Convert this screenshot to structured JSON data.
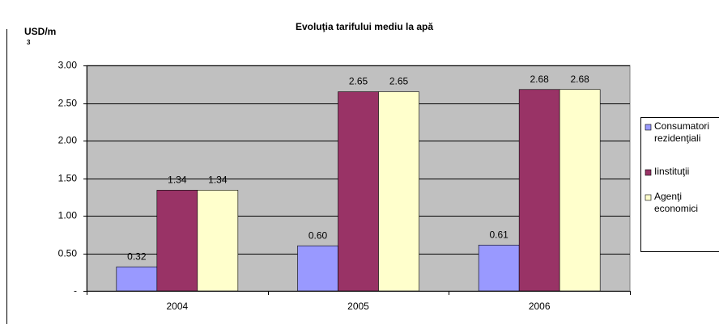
{
  "chart_data": {
    "type": "bar",
    "title": "Evoluţia tarifului mediu la apă",
    "ylabel": "USD/m",
    "ylabel_superscript": "3",
    "categories": [
      "2004",
      "2005",
      "2006"
    ],
    "series": [
      {
        "name": "Consumatori rezidenţiali",
        "color": "#9999ff",
        "values": [
          0.32,
          0.6,
          0.61
        ],
        "value_labels": [
          "0.32",
          "0.60",
          "0.61"
        ]
      },
      {
        "name": "Iinstituţii",
        "color": "#993366",
        "values": [
          1.34,
          2.65,
          2.68
        ],
        "value_labels": [
          "1.34",
          "2.65",
          "2.68"
        ]
      },
      {
        "name": "Agenţi economici",
        "color": "#ffffcc",
        "values": [
          1.34,
          2.65,
          2.68
        ],
        "value_labels": [
          "1.34",
          "2.65",
          "2.68"
        ]
      }
    ],
    "ylim": [
      0,
      3
    ],
    "yticks": [
      {
        "value": 0,
        "label": "-"
      },
      {
        "value": 0.5,
        "label": "0.50"
      },
      {
        "value": 1,
        "label": "1.00"
      },
      {
        "value": 1.5,
        "label": "1.50"
      },
      {
        "value": 2,
        "label": "2.00"
      },
      {
        "value": 2.5,
        "label": "2.50"
      },
      {
        "value": 3,
        "label": "3.00"
      }
    ],
    "grid": true,
    "plot_background": "#c0c0c0",
    "legend_position": "right"
  }
}
